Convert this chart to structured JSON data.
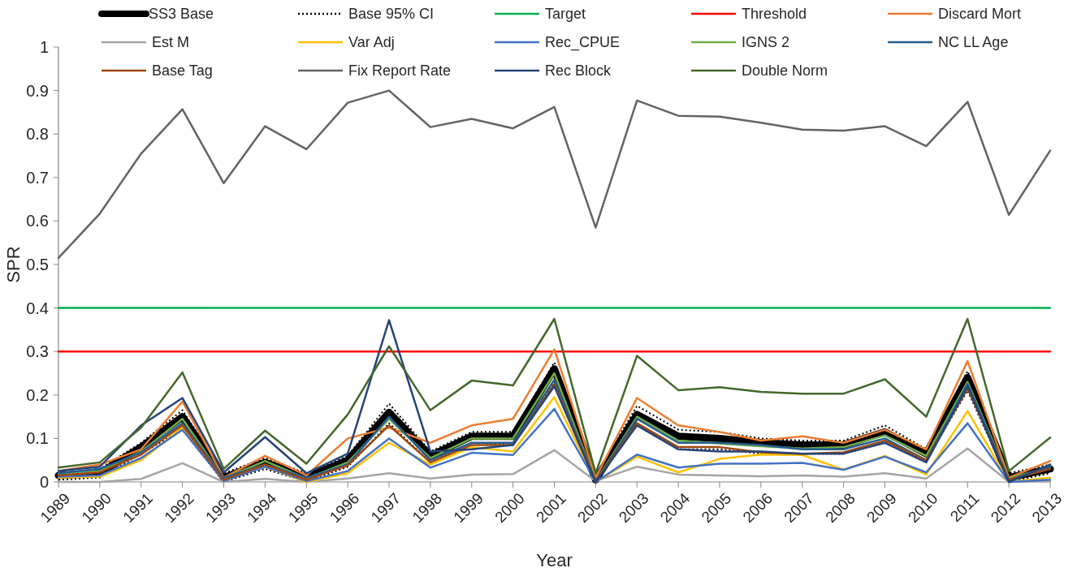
{
  "chart_data": {
    "type": "line",
    "xlabel": "Year",
    "ylabel": "SPR",
    "categories": [
      "1989",
      "1990",
      "1991",
      "1992",
      "1993",
      "1994",
      "1995",
      "1996",
      "1997",
      "1998",
      "1999",
      "2000",
      "2001",
      "2002",
      "2003",
      "2004",
      "2005",
      "2006",
      "2007",
      "2008",
      "2009",
      "2010",
      "2011",
      "2012",
      "2013"
    ],
    "ylim": [
      0,
      1
    ],
    "yticks": [
      0,
      0.1,
      0.2,
      0.3,
      0.4,
      0.5,
      0.6,
      0.7,
      0.8,
      0.9,
      1
    ],
    "grid": false,
    "legend": "top",
    "marker": "none",
    "series": [
      {
        "name": "SS3 Base",
        "color": "#000000",
        "values": [
          0.015,
          0.02,
          0.08,
          0.15,
          0.01,
          0.045,
          0.01,
          0.05,
          0.16,
          0.06,
          0.105,
          0.105,
          0.26,
          0.005,
          0.155,
          0.105,
          0.1,
          0.09,
          0.085,
          0.085,
          0.115,
          0.065,
          0.24,
          0.01,
          0.03
        ]
      },
      {
        "name": "Base 95% CI",
        "color": "#000000",
        "line_style": "dotted",
        "values": [
          0.02,
          0.03,
          0.09,
          0.165,
          0.02,
          0.055,
          0.02,
          0.06,
          0.18,
          0.07,
          0.115,
          0.115,
          0.275,
          0.015,
          0.175,
          0.12,
          0.115,
          0.1,
          0.095,
          0.095,
          0.13,
          0.075,
          0.255,
          0.02,
          0.04
        ]
      },
      {
        "color": "#000000",
        "line_style": "dotted",
        "values": [
          0.005,
          0.01,
          0.065,
          0.12,
          0,
          0.03,
          0,
          0.035,
          0.135,
          0.045,
          0.09,
          0.085,
          0.23,
          0,
          0.135,
          0.075,
          0.075,
          0.065,
          0.065,
          0.065,
          0.09,
          0.05,
          0.21,
          0,
          0.02
        ]
      },
      {
        "name": "Target",
        "color": "#00b050",
        "values": [
          0.4,
          0.4,
          0.4,
          0.4,
          0.4,
          0.4,
          0.4,
          0.4,
          0.4,
          0.4,
          0.4,
          0.4,
          0.4,
          0.4,
          0.4,
          0.4,
          0.4,
          0.4,
          0.4,
          0.4,
          0.4,
          0.4,
          0.4,
          0.4,
          0.4
        ]
      },
      {
        "name": "Threshold",
        "color": "#ff0000",
        "values": [
          0.3,
          0.3,
          0.3,
          0.3,
          0.3,
          0.3,
          0.3,
          0.3,
          0.3,
          0.3,
          0.3,
          0.3,
          0.3,
          0.3,
          0.3,
          0.3,
          0.3,
          0.3,
          0.3,
          0.3,
          0.3,
          0.3,
          0.3,
          0.3,
          0.3
        ]
      },
      {
        "name": "Discard Mort",
        "color": "#ed7d31",
        "values": [
          0.025,
          0.04,
          0.075,
          0.185,
          0.01,
          0.06,
          0.015,
          0.1,
          0.125,
          0.09,
          0.13,
          0.145,
          0.305,
          0.01,
          0.193,
          0.13,
          0.115,
          0.095,
          0.105,
          0.09,
          0.12,
          0.075,
          0.278,
          0.01,
          0.048
        ]
      },
      {
        "name": "Est M",
        "color": "#a5a5a5",
        "values": [
          0,
          0,
          0.007,
          0.043,
          0,
          0.007,
          0,
          0.008,
          0.02,
          0.008,
          0.017,
          0.018,
          0.073,
          0.002,
          0.035,
          0.017,
          0.015,
          0.013,
          0.015,
          0.012,
          0.02,
          0.008,
          0.077,
          0,
          0.002
        ]
      },
      {
        "name": "Var Adj",
        "color": "#ffc000",
        "values": [
          0.01,
          0.012,
          0.05,
          0.125,
          0.005,
          0.035,
          0,
          0.02,
          0.09,
          0.04,
          0.08,
          0.07,
          0.195,
          0,
          0.058,
          0.022,
          0.053,
          0.063,
          0.062,
          0.028,
          0.06,
          0.017,
          0.163,
          0,
          0.01
        ]
      },
      {
        "name": "Rec_CPUE",
        "color": "#4472c4",
        "values": [
          0.012,
          0.015,
          0.055,
          0.12,
          0.002,
          0.035,
          0.002,
          0.025,
          0.1,
          0.033,
          0.067,
          0.062,
          0.168,
          0,
          0.063,
          0.033,
          0.042,
          0.042,
          0.044,
          0.028,
          0.058,
          0.022,
          0.135,
          0,
          0.005
        ]
      },
      {
        "name": "IGNS 2",
        "color": "#70ad47",
        "values": [
          0.018,
          0.025,
          0.07,
          0.145,
          0.008,
          0.048,
          0.008,
          0.045,
          0.145,
          0.055,
          0.1,
          0.1,
          0.25,
          0.003,
          0.15,
          0.095,
          0.088,
          0.082,
          0.077,
          0.08,
          0.107,
          0.06,
          0.23,
          0.008,
          0.035
        ]
      },
      {
        "name": "NC LL Age",
        "color": "#255e91",
        "values": [
          0.02,
          0.03,
          0.068,
          0.135,
          0.01,
          0.04,
          0.01,
          0.04,
          0.15,
          0.05,
          0.09,
          0.09,
          0.235,
          0.002,
          0.145,
          0.09,
          0.09,
          0.085,
          0.075,
          0.075,
          0.1,
          0.05,
          0.225,
          0.005,
          0.035
        ]
      },
      {
        "name": "Base Tag",
        "color": "#9e480e",
        "values": [
          0.015,
          0.022,
          0.063,
          0.13,
          0.005,
          0.04,
          0.005,
          0.038,
          0.13,
          0.045,
          0.085,
          0.085,
          0.225,
          0.002,
          0.135,
          0.08,
          0.08,
          0.068,
          0.065,
          0.068,
          0.095,
          0.05,
          0.215,
          0.005,
          0.03
        ]
      },
      {
        "name": "Fix Report Rate",
        "color": "#636363",
        "values": [
          0.515,
          0.617,
          0.755,
          0.857,
          0.687,
          0.818,
          0.765,
          0.872,
          0.9,
          0.816,
          0.835,
          0.813,
          0.862,
          0.585,
          0.877,
          0.842,
          0.84,
          0.826,
          0.81,
          0.808,
          0.818,
          0.772,
          0.874,
          0.614,
          0.762
        ]
      },
      {
        "name": "Rec Block",
        "color": "#264478",
        "values": [
          0.025,
          0.035,
          0.13,
          0.193,
          0.022,
          0.103,
          0.02,
          0.065,
          0.372,
          0.07,
          0.075,
          0.085,
          0.22,
          0,
          0.13,
          0.075,
          0.07,
          0.07,
          0.065,
          0.065,
          0.09,
          0.045,
          0.22,
          0,
          0.04
        ]
      },
      {
        "name": "Double Norm",
        "color": "#43682b",
        "values": [
          0.033,
          0.045,
          0.125,
          0.252,
          0.03,
          0.118,
          0.042,
          0.155,
          0.312,
          0.165,
          0.233,
          0.222,
          0.375,
          0.02,
          0.29,
          0.211,
          0.218,
          0.207,
          0.203,
          0.203,
          0.236,
          0.15,
          0.375,
          0.025,
          0.102
        ]
      }
    ]
  }
}
